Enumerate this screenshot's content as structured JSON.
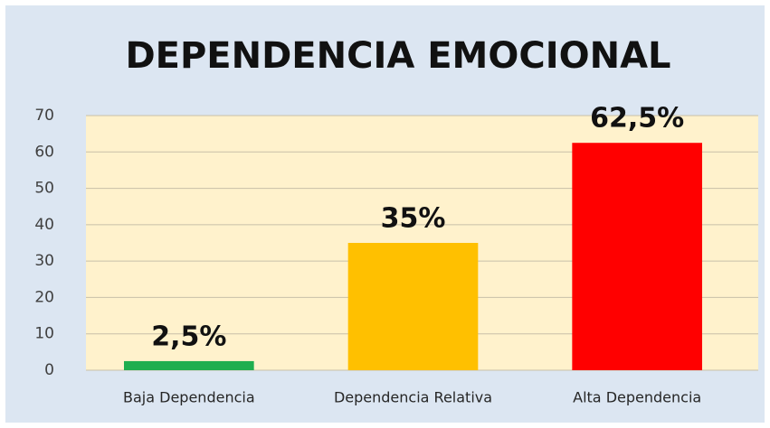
{
  "chart_data": {
    "type": "bar",
    "title": "DEPENDENCIA EMOCIONAL",
    "categories": [
      "Baja Dependencia",
      "Dependencia Relativa",
      "Alta Dependencia"
    ],
    "values": [
      2.5,
      35,
      62.5
    ],
    "value_labels": [
      "2,5%",
      "35%",
      "62,5%"
    ],
    "colors": [
      "#1fae4f",
      "#ffc000",
      "#ff0000"
    ],
    "ylim": [
      0,
      70
    ],
    "yticks": [
      0,
      10,
      20,
      30,
      40,
      50,
      60,
      70
    ],
    "grid": true
  }
}
